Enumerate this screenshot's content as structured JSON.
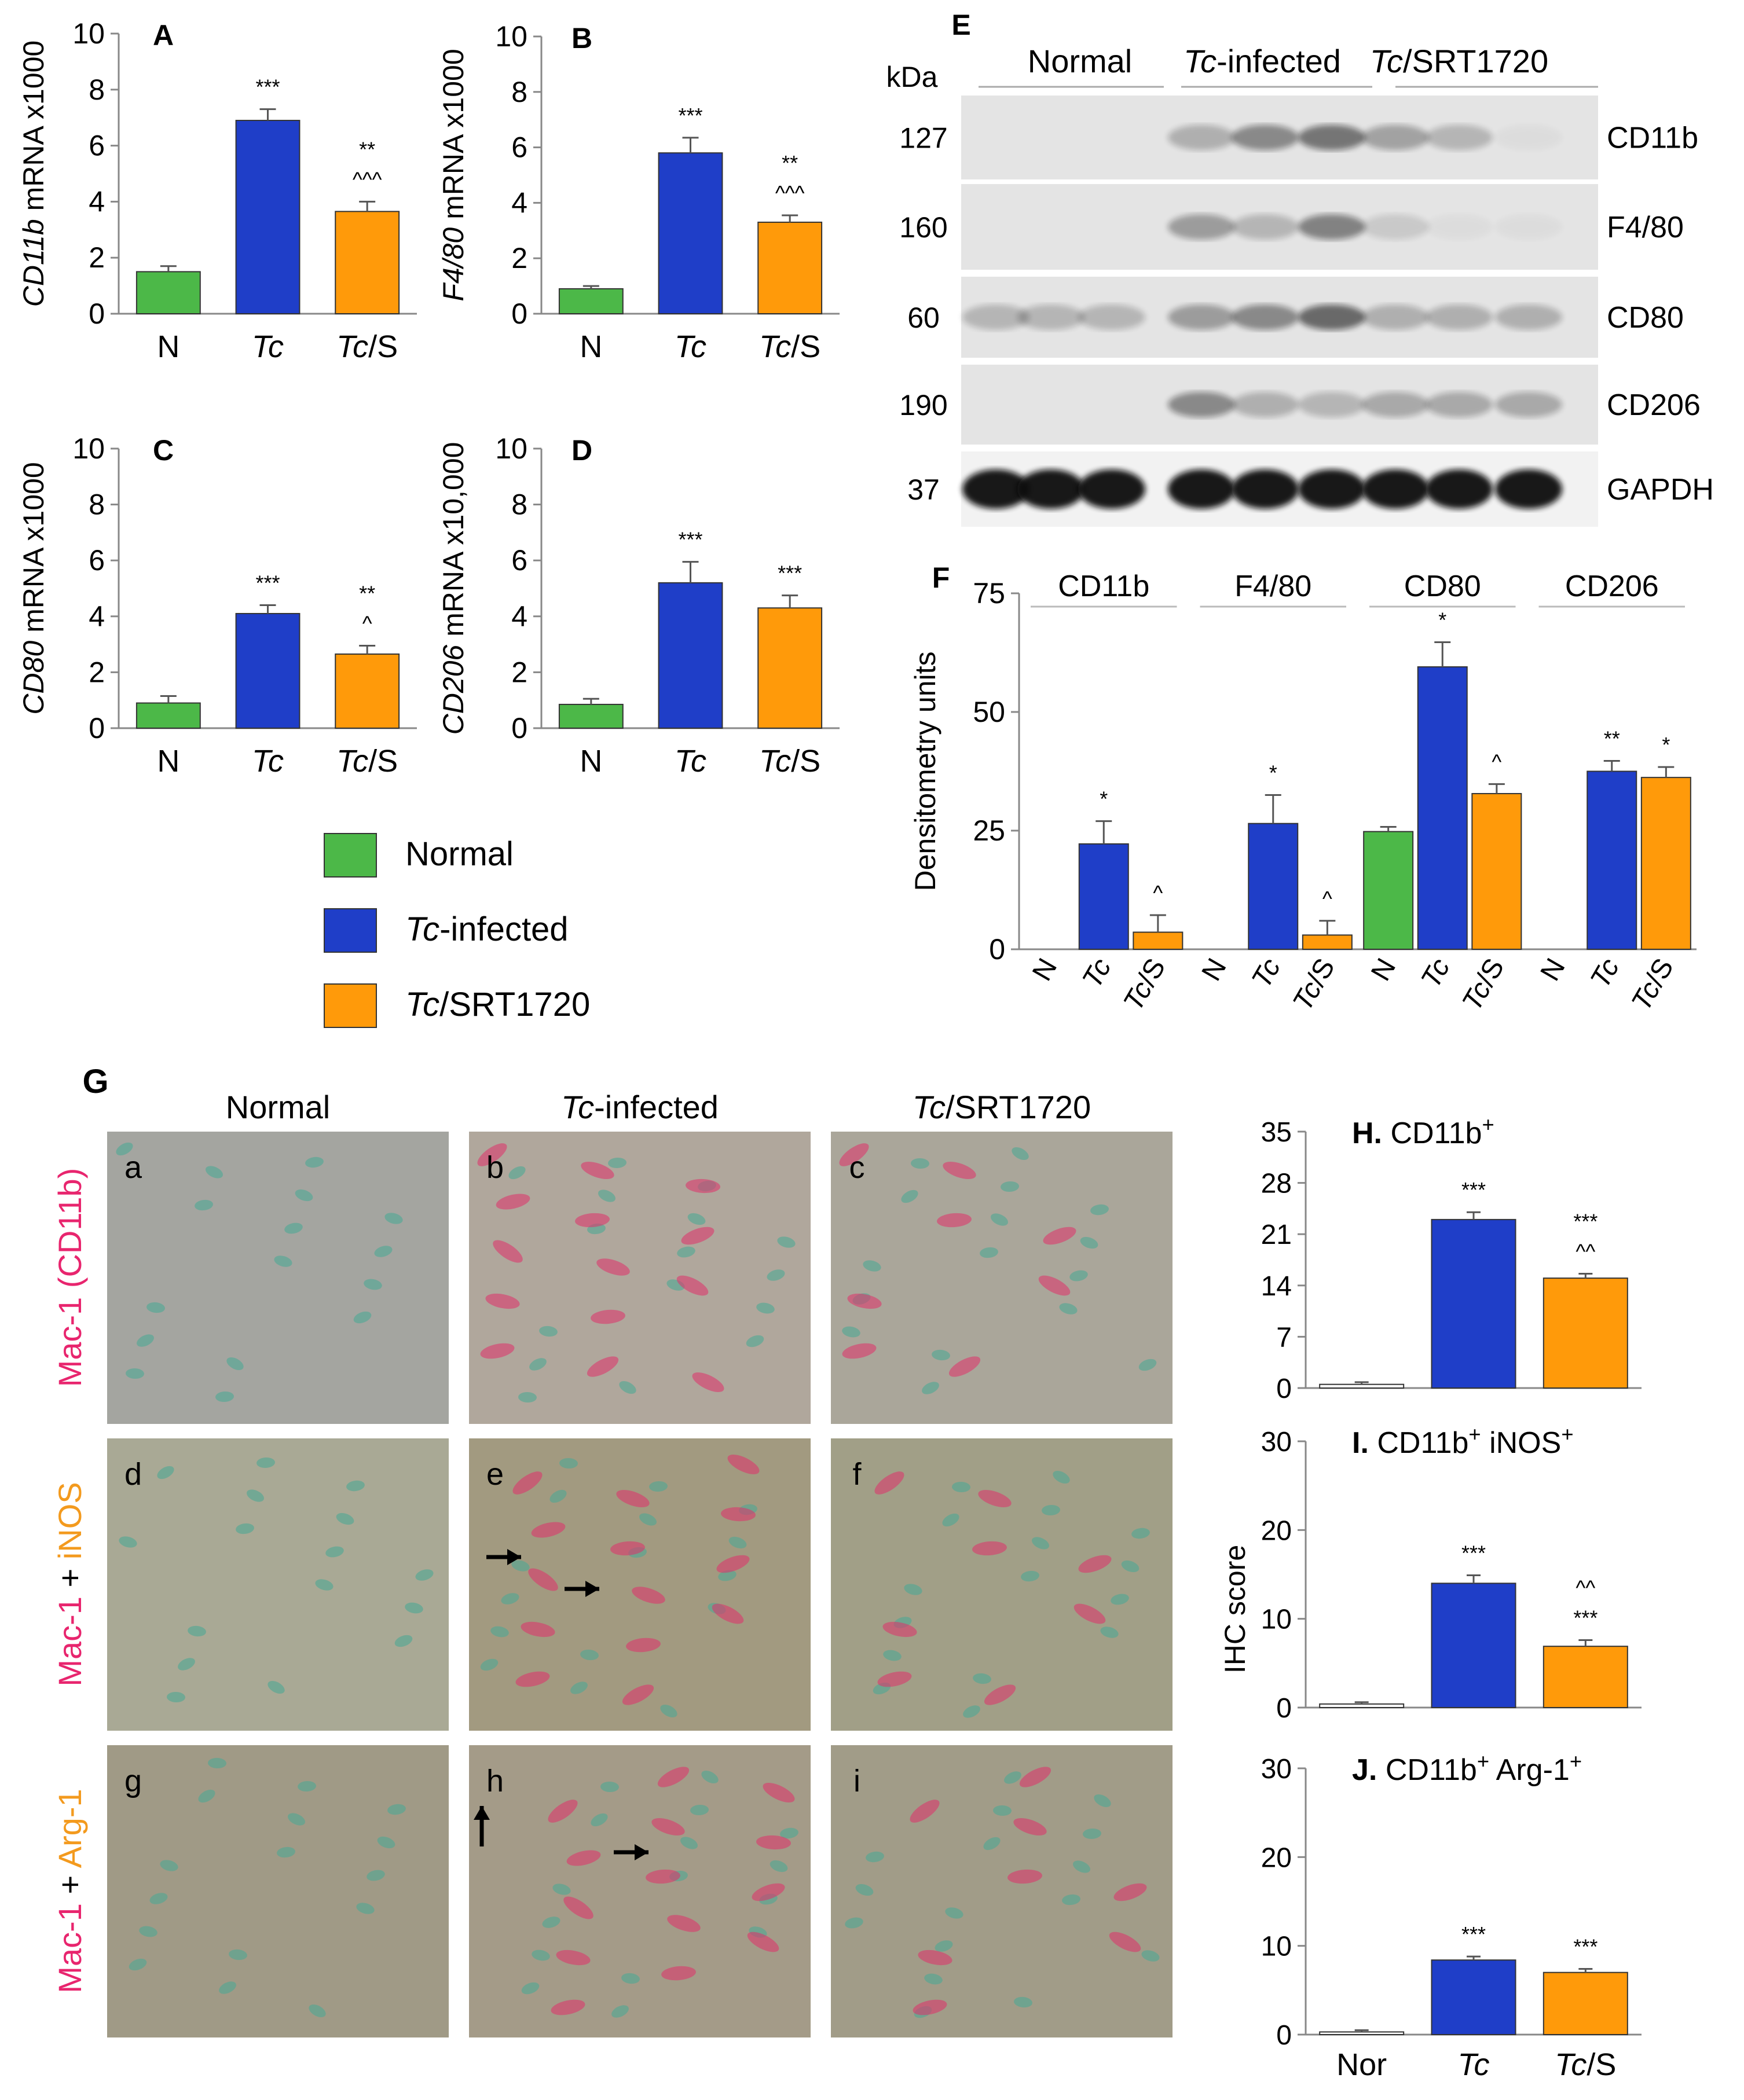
{
  "colors": {
    "normal": "#4cb848",
    "tc": "#1f3ec8",
    "tcs": "#ff9a0a",
    "err": "#555555"
  },
  "legend": {
    "items": [
      {
        "prefix": "",
        "italic": "",
        "rest": "Normal",
        "color": "#4cb848"
      },
      {
        "prefix": "",
        "italic": "Tc",
        "rest": "-infected",
        "color": "#1f3ec8"
      },
      {
        "prefix": "",
        "italic": "Tc",
        "rest": "/SRT1720",
        "color": "#ff9a0a"
      }
    ]
  },
  "chart_data": [
    {
      "id": "A",
      "type": "bar",
      "panel_label": "A",
      "ylabel_italic": "CD11b",
      "ylabel_rest": " mRNA x1000",
      "ylim": [
        0,
        10
      ],
      "yticks": [
        0,
        2,
        4,
        6,
        8,
        10
      ],
      "categories": [
        {
          "text": "N",
          "italic": false
        },
        {
          "text": "Tc",
          "italic": true
        },
        {
          "text": "Tc/S",
          "italic": "prefix"
        }
      ],
      "values": [
        1.5,
        6.9,
        3.65
      ],
      "errors": [
        0.2,
        0.4,
        0.35
      ],
      "colors": [
        "#4cb848",
        "#1f3ec8",
        "#ff9a0a"
      ],
      "annotations": [
        [],
        [
          "***"
        ],
        [
          "**",
          "^^^"
        ]
      ]
    },
    {
      "id": "B",
      "type": "bar",
      "panel_label": "B",
      "ylabel_italic": "F4/80",
      "ylabel_rest": " mRNA x1000",
      "ylim": [
        0,
        10
      ],
      "yticks": [
        0,
        2,
        4,
        6,
        8,
        10
      ],
      "categories": [
        {
          "text": "N",
          "italic": false
        },
        {
          "text": "Tc",
          "italic": true
        },
        {
          "text": "Tc/S",
          "italic": "prefix"
        }
      ],
      "values": [
        0.9,
        5.8,
        3.3
      ],
      "errors": [
        0.1,
        0.55,
        0.25
      ],
      "colors": [
        "#4cb848",
        "#1f3ec8",
        "#ff9a0a"
      ],
      "annotations": [
        [],
        [
          "***"
        ],
        [
          "**",
          "^^^"
        ]
      ]
    },
    {
      "id": "C",
      "type": "bar",
      "panel_label": "C",
      "ylabel_italic": "CD80",
      "ylabel_rest": " mRNA x1000",
      "ylim": [
        0,
        10
      ],
      "yticks": [
        0,
        2,
        4,
        6,
        8,
        10
      ],
      "categories": [
        {
          "text": "N",
          "italic": false
        },
        {
          "text": "Tc",
          "italic": true
        },
        {
          "text": "Tc/S",
          "italic": "prefix"
        }
      ],
      "values": [
        0.9,
        4.1,
        2.65
      ],
      "errors": [
        0.25,
        0.3,
        0.3
      ],
      "colors": [
        "#4cb848",
        "#1f3ec8",
        "#ff9a0a"
      ],
      "annotations": [
        [],
        [
          "***"
        ],
        [
          "**",
          "^"
        ]
      ]
    },
    {
      "id": "D",
      "type": "bar",
      "panel_label": "D",
      "ylabel_italic": "CD206",
      "ylabel_rest": " mRNA x10,000",
      "ylim": [
        0,
        10
      ],
      "yticks": [
        0,
        2,
        4,
        6,
        8,
        10
      ],
      "categories": [
        {
          "text": "N",
          "italic": false
        },
        {
          "text": "Tc",
          "italic": true
        },
        {
          "text": "Tc/S",
          "italic": "prefix"
        }
      ],
      "values": [
        0.85,
        5.2,
        4.3
      ],
      "errors": [
        0.2,
        0.75,
        0.45
      ],
      "colors": [
        "#4cb848",
        "#1f3ec8",
        "#ff9a0a"
      ],
      "annotations": [
        [],
        [
          "***"
        ],
        [
          "***"
        ]
      ]
    },
    {
      "id": "F",
      "type": "bar",
      "panel_label": "F",
      "ylabel": "Densitometry units",
      "ylim": [
        0,
        75
      ],
      "yticks": [
        0,
        25,
        50,
        75
      ],
      "groups": [
        "CD11b",
        "F4/80",
        "CD80",
        "CD206"
      ],
      "group_categories": [
        "N",
        "Tc",
        "Tc/S"
      ],
      "values": [
        [
          0,
          22.2,
          3.6
        ],
        [
          0,
          26.5,
          3.0
        ],
        [
          24.8,
          59.5,
          32.8
        ],
        [
          0,
          37.5,
          36.2
        ]
      ],
      "errors": [
        [
          0,
          4.8,
          3.6
        ],
        [
          0,
          6.0,
          3.0
        ],
        [
          1.0,
          5.2,
          2.0
        ],
        [
          0,
          2.2,
          2.2
        ]
      ],
      "colors": [
        "#4cb848",
        "#1f3ec8",
        "#ff9a0a"
      ],
      "annotations": [
        [
          [],
          [
            "*"
          ],
          [
            "^"
          ]
        ],
        [
          [],
          [
            "*"
          ],
          [
            "^"
          ]
        ],
        [
          [],
          [
            "*"
          ],
          [
            "^"
          ]
        ],
        [
          [],
          [
            "**"
          ],
          [
            "*"
          ]
        ]
      ]
    },
    {
      "id": "H",
      "type": "bar",
      "title_bold": "H.",
      "title_rest": " CD11b",
      "title_sup": "+",
      "ylim": [
        0,
        35
      ],
      "yticks": [
        0,
        7,
        14,
        21,
        28,
        35
      ],
      "values": [
        0.5,
        23.0,
        15.0
      ],
      "errors": [
        0.3,
        1.0,
        0.6
      ],
      "colors": [
        "#ffffff",
        "#1f3ec8",
        "#ff9a0a"
      ],
      "annotations": [
        [],
        [
          "***"
        ],
        [
          "***",
          "^^"
        ]
      ]
    },
    {
      "id": "I",
      "type": "bar",
      "title_bold": "I.",
      "title_rest": " CD11b",
      "title_sup": "+",
      "title_rest2": " iNOS",
      "title_sup2": "+",
      "ylim": [
        0,
        30
      ],
      "yticks": [
        0,
        10,
        20,
        30
      ],
      "values": [
        0.4,
        14.0,
        6.9
      ],
      "errors": [
        0.2,
        0.9,
        0.7
      ],
      "colors": [
        "#ffffff",
        "#1f3ec8",
        "#ff9a0a"
      ],
      "annotations": [
        [],
        [
          "***"
        ],
        [
          "^^",
          "***"
        ]
      ]
    },
    {
      "id": "J",
      "type": "bar",
      "title_bold": "J.",
      "title_rest": " CD11b",
      "title_sup": "+",
      "title_rest2": " Arg-1",
      "title_sup2": "+",
      "ylim": [
        0,
        30
      ],
      "yticks": [
        0,
        10,
        20,
        30
      ],
      "values": [
        0.3,
        8.4,
        7.0
      ],
      "errors": [
        0.2,
        0.4,
        0.4
      ],
      "colors": [
        "#ffffff",
        "#1f3ec8",
        "#ff9a0a"
      ],
      "annotations": [
        [],
        [
          "***"
        ],
        [
          "***"
        ]
      ],
      "categories": [
        "Nor",
        "Tc",
        "Tc/S"
      ]
    }
  ],
  "ihc_ylabel": "IHC score",
  "blot": {
    "panel_label": "E",
    "kda_label": "kDa",
    "groups": [
      {
        "italic": "",
        "rest": "Normal"
      },
      {
        "italic": "Tc",
        "rest": "-infected"
      },
      {
        "italic": "Tc",
        "rest": "/SRT1720"
      }
    ],
    "rows": [
      {
        "kda": "127",
        "label": "CD11b"
      },
      {
        "kda": "160",
        "label": "F4/80"
      },
      {
        "kda": "60",
        "label": "CD80"
      },
      {
        "kda": "190",
        "label": "CD206"
      },
      {
        "kda": "37",
        "label": "GAPDH"
      }
    ]
  },
  "micro": {
    "panel_label": "G",
    "columns": [
      {
        "italic": "",
        "rest": "Normal"
      },
      {
        "italic": "Tc",
        "rest": "-infected"
      },
      {
        "italic": "Tc",
        "rest": "/SRT1720"
      }
    ],
    "rows": [
      {
        "part1": "Mac-1 (CD11b)",
        "part1_color": "#e8256e",
        "sep": "",
        "part2": "",
        "part2_color": "#f39a1e"
      },
      {
        "part1": "Mac-1",
        "part1_color": "#e8256e",
        "sep": " + ",
        "part2": "iNOS",
        "part2_color": "#f39a1e"
      },
      {
        "part1": "Mac-1",
        "part1_color": "#e8256e",
        "sep": " + ",
        "part2": "Arg-1",
        "part2_color": "#f39a1e"
      }
    ],
    "cell_letters": [
      "a",
      "b",
      "c",
      "d",
      "e",
      "f",
      "g",
      "h",
      "i"
    ]
  }
}
